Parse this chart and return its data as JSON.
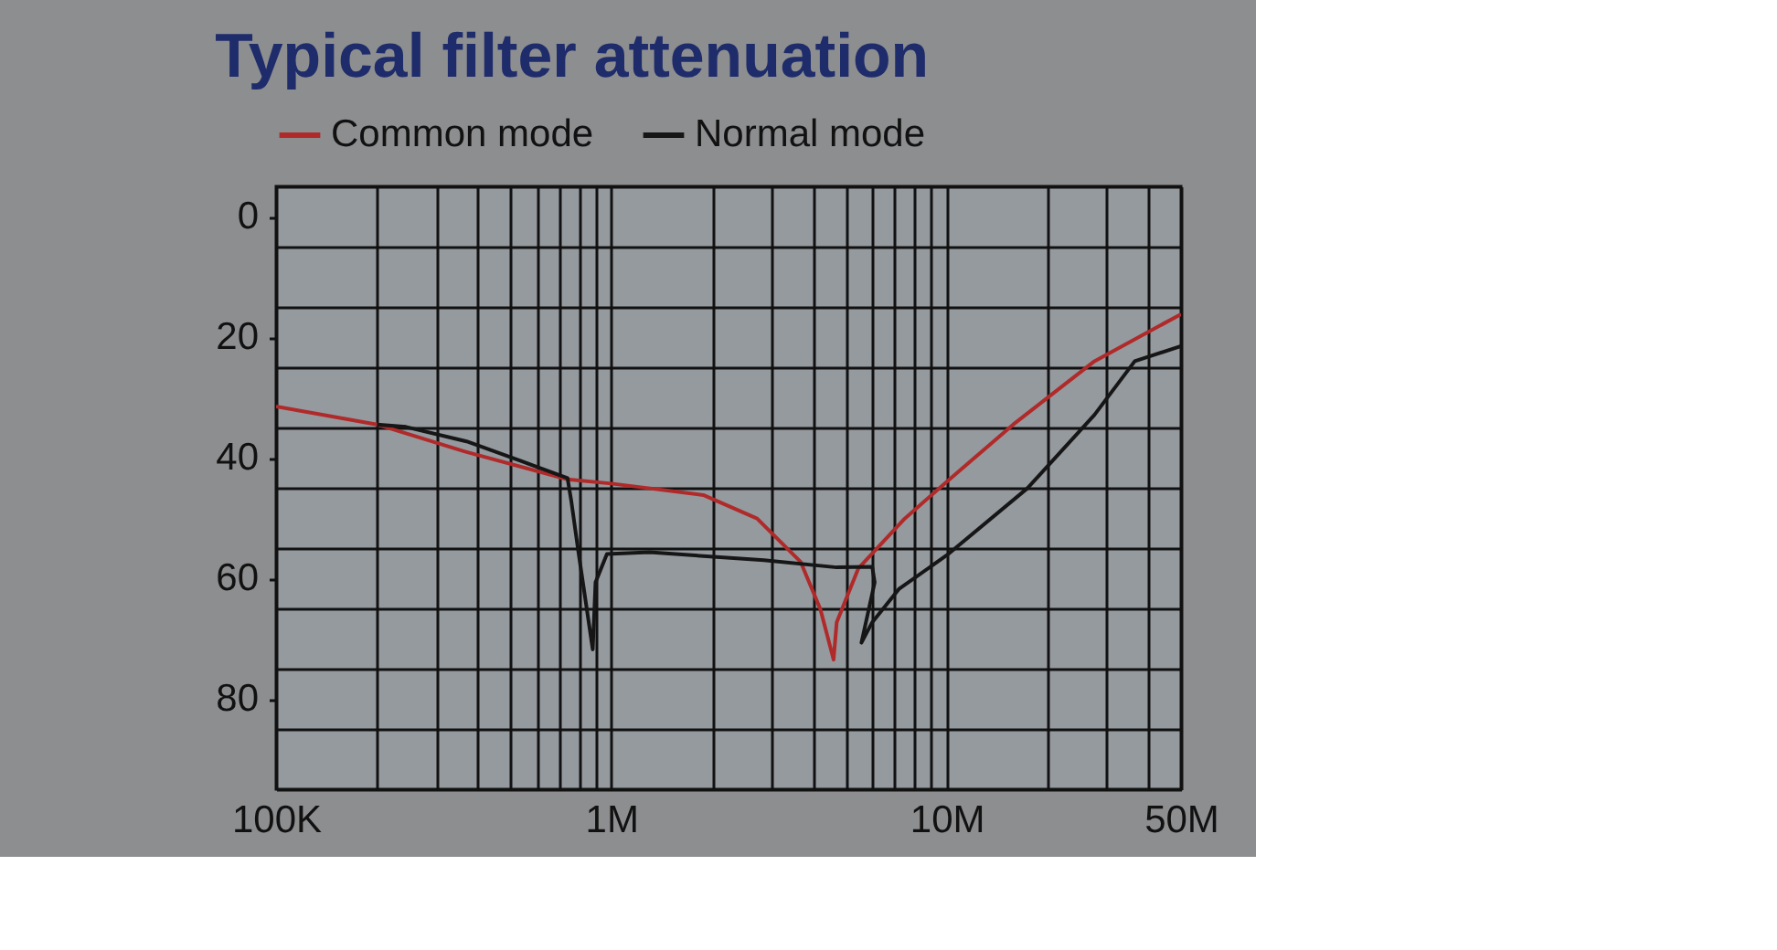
{
  "chart_data": {
    "type": "line",
    "title": "Typical filter attenuation",
    "legend": "top",
    "grid": true,
    "log": "x",
    "line_style": "solid",
    "marker": "none",
    "xlim": [
      100000,
      50000000
    ],
    "xticks": [
      {
        "value": 100000,
        "label": "100K"
      },
      {
        "value": 200000,
        "label": null
      },
      {
        "value": 300000,
        "label": null
      },
      {
        "value": 400000,
        "label": null
      },
      {
        "value": 500000,
        "label": null
      },
      {
        "value": 600000,
        "label": null
      },
      {
        "value": 700000,
        "label": null
      },
      {
        "value": 800000,
        "label": null
      },
      {
        "value": 900000,
        "label": null
      },
      {
        "value": 1000000,
        "label": "1M"
      },
      {
        "value": 2000000,
        "label": null
      },
      {
        "value": 3000000,
        "label": null
      },
      {
        "value": 4000000,
        "label": null
      },
      {
        "value": 5000000,
        "label": null
      },
      {
        "value": 6000000,
        "label": null
      },
      {
        "value": 7000000,
        "label": null
      },
      {
        "value": 8000000,
        "label": null
      },
      {
        "value": 9000000,
        "label": null
      },
      {
        "value": 10000000,
        "label": "10M"
      },
      {
        "value": 20000000,
        "label": null
      },
      {
        "value": 30000000,
        "label": null
      },
      {
        "value": 40000000,
        "label": null
      },
      {
        "value": 50000000,
        "label": "50M"
      }
    ],
    "ylim": [
      95,
      -5
    ],
    "yticks": [
      {
        "value": -5,
        "label": null
      },
      0,
      {
        "value": 5,
        "label": null
      },
      {
        "value": 15,
        "label": null
      },
      20,
      {
        "value": 25,
        "label": null
      },
      {
        "value": 35,
        "label": null
      },
      40,
      {
        "value": 45,
        "label": null
      },
      {
        "value": 55,
        "label": null
      },
      60,
      {
        "value": 65,
        "label": null
      },
      {
        "value": 75,
        "label": null
      },
      80,
      {
        "value": 85,
        "label": null
      },
      {
        "value": 95,
        "label": null
      }
    ],
    "series": [
      {
        "name": "Common mode",
        "color": "#b02a2a",
        "x": [
          100000,
          200000,
          366000,
          740000,
          1000000,
          1880000,
          2720000,
          3670000,
          4200000,
          4600000,
          4700000,
          5450000,
          7500000,
          10000000,
          15800000,
          27600000,
          50000000
        ],
        "values": [
          31.5,
          34.5,
          39,
          43.6,
          44.3,
          46.2,
          50.1,
          57.3,
          65.1,
          73.5,
          67.3,
          58.4,
          50.1,
          44,
          34.5,
          24,
          16.2
        ]
      },
      {
        "name": "Normal mode",
        "color": "#161616",
        "x": [
          200000,
          244000,
          370000,
          540000,
          740000,
          760000,
          795000,
          880000,
          897000,
          970000,
          1300000,
          2850000,
          4700000,
          6000000,
          6100000,
          5570000,
          6000000,
          7200000,
          10000000,
          17400000,
          27600000,
          36400000,
          50000000
        ],
        "values": [
          34.5,
          34.9,
          37.3,
          40.6,
          43.4,
          47.3,
          55.1,
          71.8,
          60.7,
          56,
          55.7,
          57,
          58.2,
          58.1,
          60.7,
          70.7,
          67.3,
          61.8,
          56.2,
          45.1,
          32.9,
          24,
          21.5
        ]
      }
    ]
  }
}
